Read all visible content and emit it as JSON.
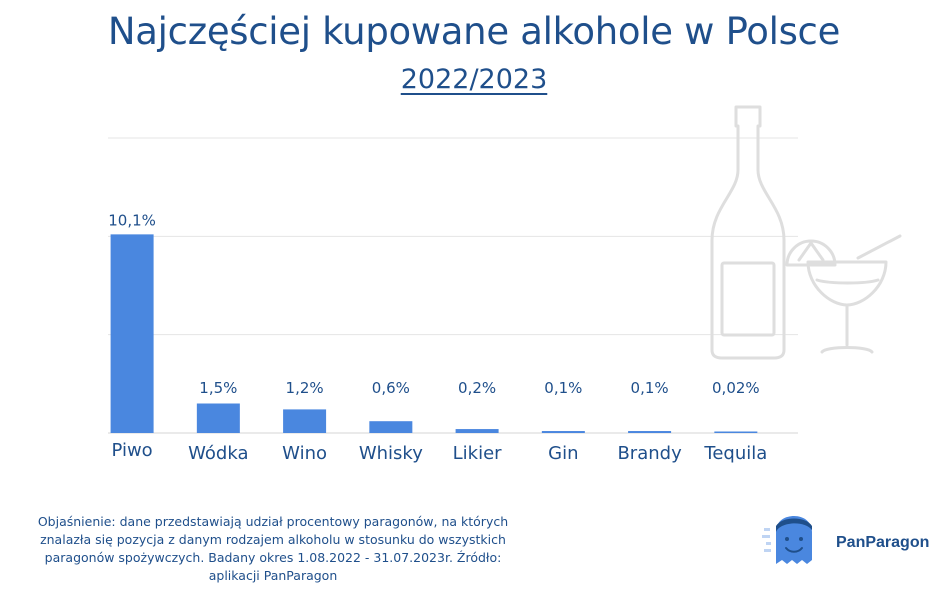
{
  "header": {
    "title": "Najczęściej kupowane alkohole w Polsce",
    "subtitle": "2022/2023"
  },
  "chart_data": {
    "type": "bar",
    "categories": [
      "Piwo",
      "Wódka",
      "Wino",
      "Whisky",
      "Likier",
      "Gin",
      "Brandy",
      "Tequila"
    ],
    "values": [
      10.1,
      1.5,
      1.2,
      0.6,
      0.2,
      0.1,
      0.1,
      0.02
    ],
    "value_labels": [
      "10,1%",
      "1,5%",
      "1,2%",
      "0,6%",
      "0,2%",
      "0,1%",
      "0,1%",
      "0,02%"
    ],
    "ylim": [
      0,
      15
    ],
    "grid": true,
    "bar_color": "#4a87df"
  },
  "footnote": "Objaśnienie: dane przedstawiają udział procentowy paragonów, na których znalazła się pozycja z danym rodzajem alkoholu w stosunku do wszystkich paragonów spożywczych. Badany okres 1.08.2022 - 31.07.2023r.  Źródło: aplikacji PanParagon",
  "brand": {
    "name": "PanParagon",
    "color": "#1f4f8b",
    "mascot_color": "#4a87df"
  },
  "decoration": {
    "icons": [
      "bottle-icon",
      "cocktail-glass-icon"
    ],
    "color": "#dedede"
  }
}
